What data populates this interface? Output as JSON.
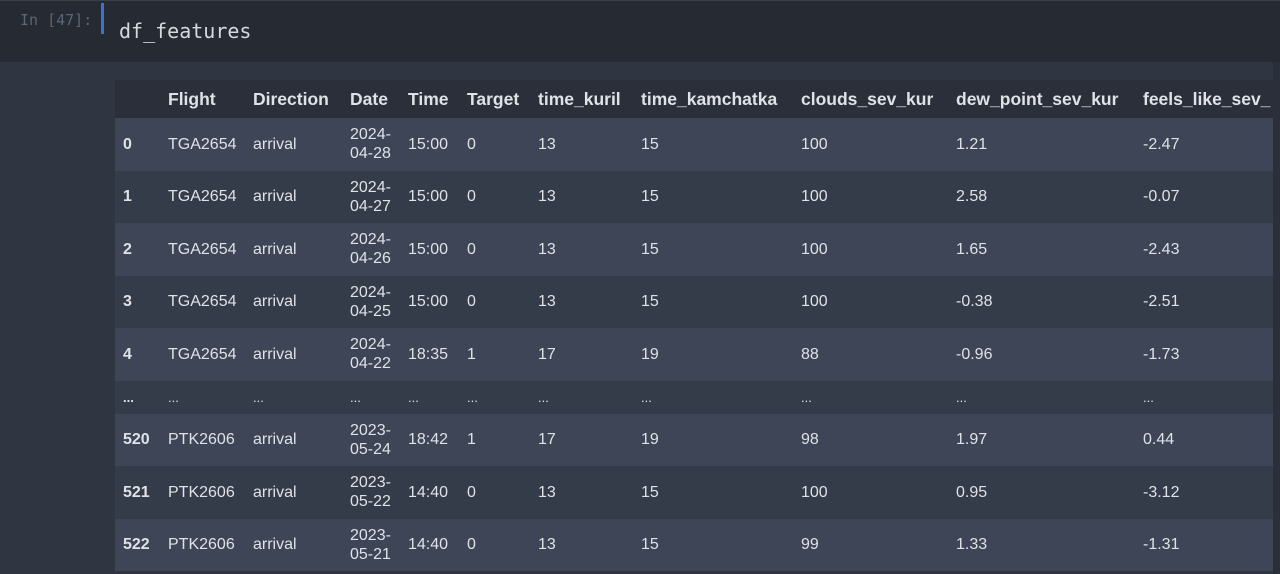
{
  "cell": {
    "prompt": "In [47]:",
    "code": "df_features"
  },
  "table": {
    "columns": [
      "",
      "Flight",
      "Direction",
      "Date",
      "Time",
      "Target",
      "time_kuril",
      "time_kamchatka",
      "clouds_sev_kur",
      "dew_point_sev_kur",
      "feels_like_sev_"
    ],
    "rows": [
      [
        "0",
        "TGA2654",
        "arrival",
        "2024-\n04-28",
        "15:00",
        "0",
        "13",
        "15",
        "100",
        "1.21",
        "-2.47"
      ],
      [
        "1",
        "TGA2654",
        "arrival",
        "2024-\n04-27",
        "15:00",
        "0",
        "13",
        "15",
        "100",
        "2.58",
        "-0.07"
      ],
      [
        "2",
        "TGA2654",
        "arrival",
        "2024-\n04-26",
        "15:00",
        "0",
        "13",
        "15",
        "100",
        "1.65",
        "-2.43"
      ],
      [
        "3",
        "TGA2654",
        "arrival",
        "2024-\n04-25",
        "15:00",
        "0",
        "13",
        "15",
        "100",
        "-0.38",
        "-2.51"
      ],
      [
        "4",
        "TGA2654",
        "arrival",
        "2024-\n04-22",
        "18:35",
        "1",
        "17",
        "19",
        "88",
        "-0.96",
        "-1.73"
      ],
      [
        "...",
        "...",
        "...",
        "...",
        "...",
        "...",
        "...",
        "...",
        "...",
        "...",
        "..."
      ],
      [
        "520",
        "PTK2606",
        "arrival",
        "2023-\n05-24",
        "18:42",
        "1",
        "17",
        "19",
        "98",
        "1.97",
        "0.44"
      ],
      [
        "521",
        "PTK2606",
        "arrival",
        "2023-\n05-22",
        "14:40",
        "0",
        "13",
        "15",
        "100",
        "0.95",
        "-3.12"
      ],
      [
        "522",
        "PTK2606",
        "arrival",
        "2023-\n05-21",
        "14:40",
        "0",
        "13",
        "15",
        "99",
        "1.33",
        "-1.31"
      ]
    ]
  }
}
